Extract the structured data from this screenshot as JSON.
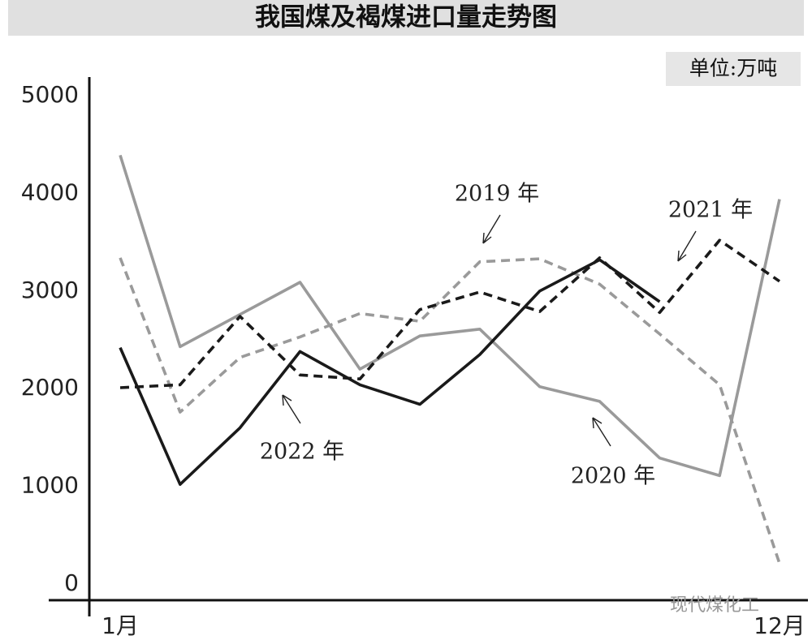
{
  "chart_data": {
    "type": "line",
    "title": "我国煤及褐煤进口量走势图",
    "unit": "单位:万吨",
    "watermark": "现代煤化工",
    "categories": [
      "1月",
      null,
      null,
      null,
      null,
      null,
      null,
      null,
      null,
      null,
      null,
      "12月"
    ],
    "ylim": [
      0,
      5000
    ],
    "yticks": [
      0,
      1000,
      2000,
      3000,
      4000,
      5000
    ],
    "grid": false,
    "series": [
      {
        "name": "2019 年",
        "color": "#9a9a9a",
        "dash": true,
        "values": [
          3340,
          1760,
          2320,
          2530,
          2770,
          2690,
          3300,
          3330,
          3070,
          2560,
          2040,
          210
        ]
      },
      {
        "name": "2020 年",
        "color": "#9a9a9a",
        "dash": false,
        "values": [
          4390,
          2430,
          2760,
          3090,
          2200,
          2540,
          2610,
          2020,
          1870,
          1290,
          1110,
          3940
        ]
      },
      {
        "name": "2021 年",
        "color": "#1a1a1a",
        "dash": true,
        "values": [
          2010,
          2040,
          2740,
          2140,
          2100,
          2810,
          2990,
          2790,
          3340,
          2780,
          3520,
          3100
        ]
      },
      {
        "name": "2022 年",
        "color": "#1a1a1a",
        "dash": false,
        "values": [
          2420,
          1020,
          1600,
          2380,
          2040,
          1840,
          2350,
          3000,
          3320,
          2890,
          null,
          null
        ]
      }
    ]
  }
}
